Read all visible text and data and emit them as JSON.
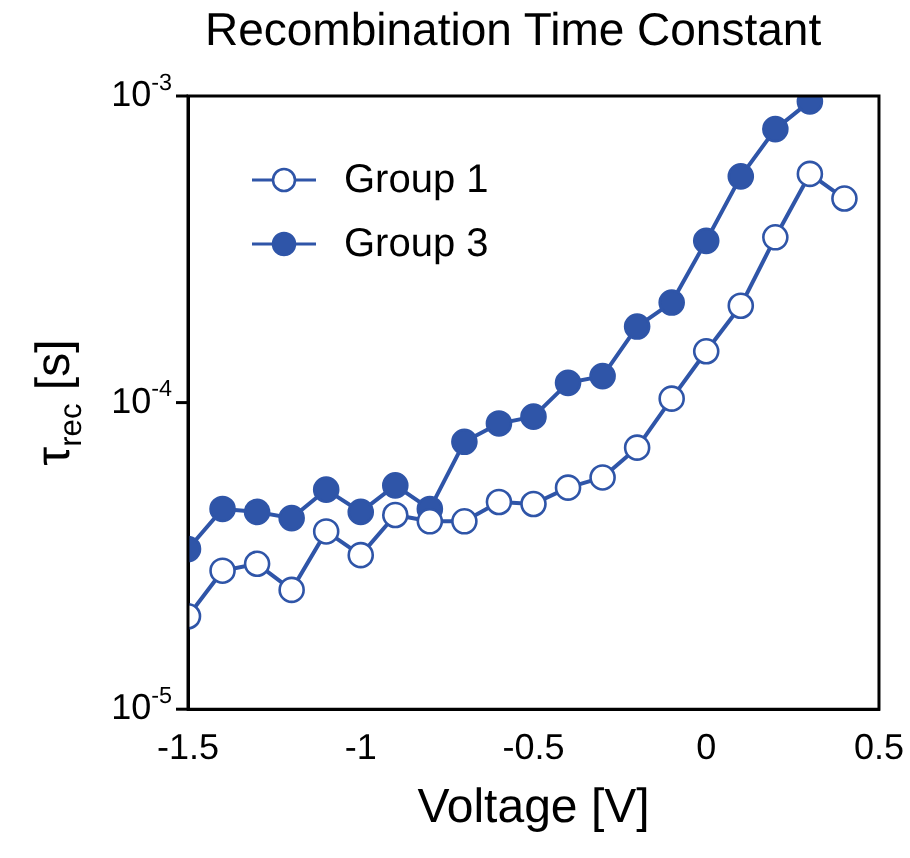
{
  "chart_data": {
    "type": "line",
    "title": "Recombination Time Constant",
    "xlabel": "Voltage [V]",
    "ylabel": "τ$_{rec}$ [s]",
    "log": "y",
    "xlim": [
      -1.5,
      0.5
    ],
    "xticks": [
      -1.5,
      -1,
      -0.5,
      0,
      0.5
    ],
    "ylim": [
      1e-05,
      0.001
    ],
    "yticks": [
      {
        "value": 1e-05,
        "label": "10$^{-5}$"
      },
      {
        "value": 0.0001,
        "label": "10$^{-4}$"
      },
      {
        "value": 0.001,
        "label": "10$^{-3}$"
      }
    ],
    "x": [
      -1.5,
      -1.4,
      -1.3,
      -1.2,
      -1.1,
      -1.0,
      -0.9,
      -0.8,
      -0.7,
      -0.6,
      -0.5,
      -0.4,
      -0.3,
      -0.2,
      -0.1,
      0,
      0.1,
      0.2,
      0.3,
      0.4
    ],
    "legend": "top left",
    "marker": "circle",
    "line_style": "solid",
    "series": [
      {
        "name": "Group 1",
        "color": "#2f55a8",
        "values": [
          2.01e-05,
          2.83e-05,
          2.98e-05,
          2.45e-05,
          3.8e-05,
          3.18e-05,
          4.3e-05,
          4.1e-05,
          4.1e-05,
          4.74e-05,
          4.67e-05,
          5.28e-05,
          5.7e-05,
          7.13e-05,
          0.000103,
          0.000147,
          0.000207,
          0.000346,
          0.000557,
          0.000463
        ]
      },
      {
        "name": "Group 3",
        "color": "#2f55a8",
        "values": [
          3.33e-05,
          4.5e-05,
          4.4e-05,
          4.2e-05,
          5.2e-05,
          4.4e-05,
          5.37e-05,
          4.5e-05,
          7.45e-05,
          8.55e-05,
          9e-05,
          0.000116,
          0.000122,
          0.000177,
          0.000212,
          0.000337,
          0.000547,
          0.00078,
          0.00096,
          null
        ]
      }
    ]
  }
}
